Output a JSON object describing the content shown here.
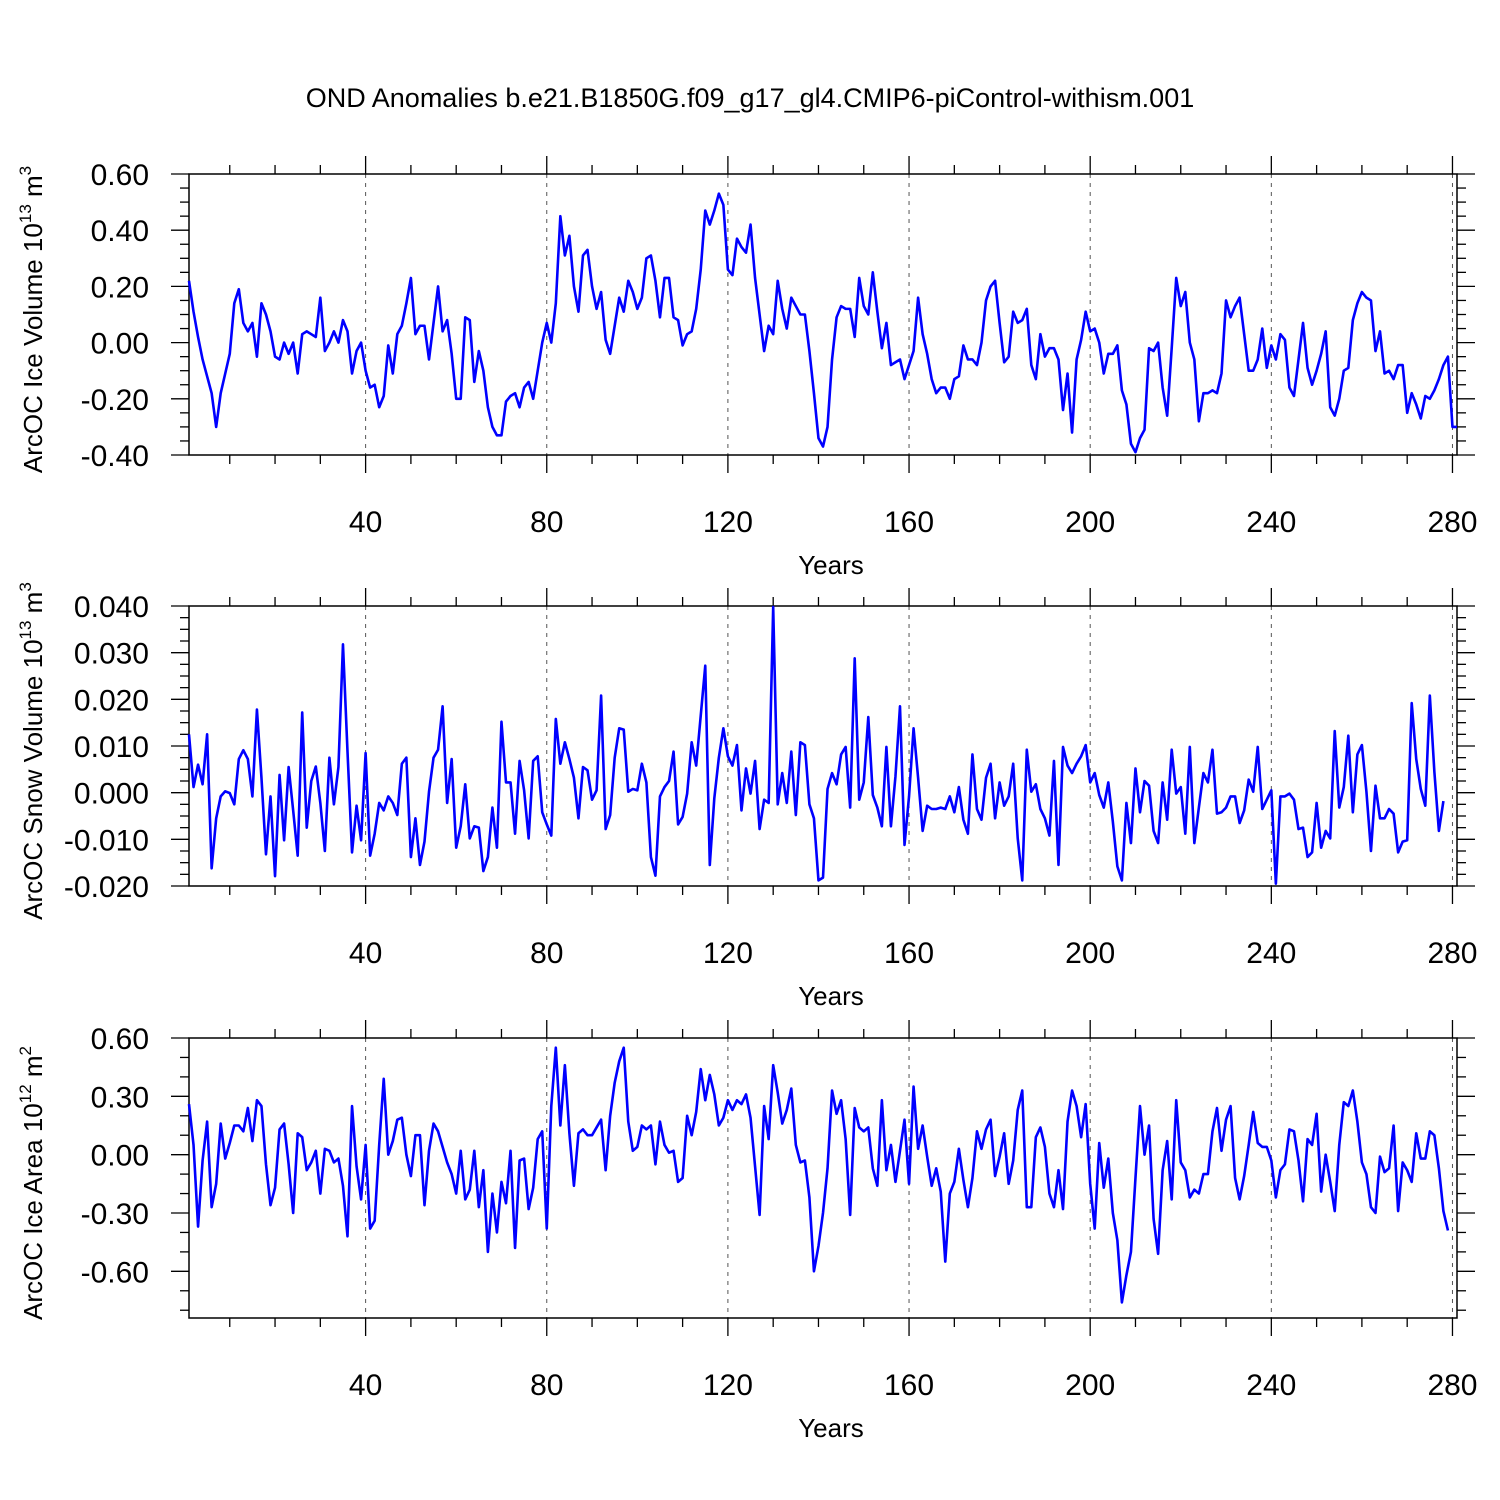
{
  "title": "OND Anomalies b.e21.B1850G.f09_g17_gl4.CMIP6-piControl-withism.001",
  "line_color": "#0000ff",
  "chart_data": [
    {
      "type": "line",
      "title": "OND Anomalies b.e21.B1850G.f09_g17_gl4.CMIP6-piControl-withism.001",
      "ylabel": {
        "text": "ArcOC Ice Volume 10",
        "exp": "13",
        "unit": " m",
        "unit_exp": "3"
      },
      "xlabel": "Years",
      "xlim": [
        1,
        281
      ],
      "ylim": [
        -0.4,
        0.6
      ],
      "x_ticks": [
        40,
        80,
        120,
        160,
        200,
        240,
        280
      ],
      "x_tick_labels": [
        "40",
        "80",
        "120",
        "160",
        "200",
        "240",
        "280"
      ],
      "y_ticks": [
        -0.4,
        -0.2,
        0.0,
        0.2,
        0.4,
        0.6
      ],
      "y_tick_labels": [
        "-0.40",
        "-0.20",
        "0.00",
        "0.20",
        "0.40",
        "0.60"
      ],
      "grid": "vertical dashed at major x ticks",
      "series": [
        {
          "x_start": 1,
          "values": [
            0.22,
            0.11,
            0.02,
            -0.06,
            -0.12,
            -0.18,
            -0.3,
            -0.18,
            -0.11,
            -0.04,
            0.14,
            0.19,
            0.07,
            0.04,
            0.07,
            -0.05,
            0.14,
            0.1,
            0.04,
            -0.05,
            -0.06,
            0.0,
            -0.04,
            0.0,
            -0.11,
            0.03,
            0.04,
            0.03,
            0.02,
            0.16,
            -0.03,
            0.0,
            0.04,
            0.0,
            0.08,
            0.04,
            -0.11,
            -0.03,
            0.0,
            -0.1,
            -0.16,
            -0.15,
            -0.23,
            -0.19,
            -0.01,
            -0.11,
            0.03,
            0.06,
            0.14,
            0.23,
            0.03,
            0.06,
            0.06,
            -0.06,
            0.07,
            0.2,
            0.04,
            0.08,
            -0.04,
            -0.2,
            -0.2,
            0.09,
            0.08,
            -0.14,
            -0.03,
            -0.1,
            -0.23,
            -0.3,
            -0.33,
            -0.33,
            -0.21,
            -0.19,
            -0.18,
            -0.23,
            -0.16,
            -0.14,
            -0.2,
            -0.1,
            0.0,
            0.07,
            0.0,
            0.14,
            0.45,
            0.31,
            0.38,
            0.2,
            0.11,
            0.31,
            0.33,
            0.2,
            0.12,
            0.18,
            0.01,
            -0.04,
            0.06,
            0.16,
            0.11,
            0.22,
            0.18,
            0.12,
            0.16,
            0.3,
            0.31,
            0.22,
            0.09,
            0.23,
            0.23,
            0.09,
            0.08,
            -0.01,
            0.03,
            0.04,
            0.12,
            0.26,
            0.47,
            0.42,
            0.47,
            0.53,
            0.49,
            0.26,
            0.24,
            0.37,
            0.34,
            0.32,
            0.42,
            0.23,
            0.1,
            -0.03,
            0.06,
            0.03,
            0.22,
            0.12,
            0.05,
            0.16,
            0.13,
            0.1,
            0.1,
            -0.03,
            -0.18,
            -0.34,
            -0.37,
            -0.3,
            -0.06,
            0.09,
            0.13,
            0.12,
            0.12,
            0.02,
            0.23,
            0.13,
            0.1,
            0.25,
            0.11,
            -0.02,
            0.07,
            -0.08,
            -0.07,
            -0.06,
            -0.13,
            -0.08,
            -0.03,
            0.16,
            0.03,
            -0.04,
            -0.13,
            -0.18,
            -0.16,
            -0.16,
            -0.2,
            -0.13,
            -0.12,
            -0.01,
            -0.06,
            -0.06,
            -0.08,
            0.0,
            0.15,
            0.2,
            0.22,
            0.07,
            -0.07,
            -0.05,
            0.11,
            0.07,
            0.08,
            0.12,
            -0.08,
            -0.13,
            0.03,
            -0.05,
            -0.02,
            -0.02,
            -0.06,
            -0.24,
            -0.11,
            -0.32,
            -0.06,
            0.01,
            0.11,
            0.04,
            0.05,
            0.0,
            -0.11,
            -0.04,
            -0.04,
            -0.01,
            -0.17,
            -0.22,
            -0.36,
            -0.39,
            -0.34,
            -0.31,
            -0.02,
            -0.03,
            0.0,
            -0.16,
            -0.26,
            -0.02,
            0.23,
            0.13,
            0.18,
            0.0,
            -0.06,
            -0.28,
            -0.18,
            -0.18,
            -0.17,
            -0.18,
            -0.11,
            0.15,
            0.09,
            0.13,
            0.16,
            0.03,
            -0.1,
            -0.1,
            -0.06,
            0.05,
            -0.09,
            -0.01,
            -0.06,
            0.03,
            0.01,
            -0.16,
            -0.19,
            -0.06,
            0.07,
            -0.09,
            -0.15,
            -0.1,
            -0.04,
            0.04,
            -0.23,
            -0.26,
            -0.2,
            -0.1,
            -0.09,
            0.08,
            0.14,
            0.18,
            0.16,
            0.15,
            -0.03,
            0.04,
            -0.11,
            -0.1,
            -0.13,
            -0.08,
            -0.08,
            -0.25,
            -0.18,
            -0.22,
            -0.27,
            -0.19,
            -0.2,
            -0.17,
            -0.13,
            -0.08,
            -0.05,
            -0.3,
            -0.3
          ]
        }
      ]
    },
    {
      "type": "line",
      "ylabel": {
        "text": "ArcOC Snow Volume 10",
        "exp": "13",
        "unit": " m",
        "unit_exp": "3"
      },
      "xlabel": "Years",
      "xlim": [
        1,
        281
      ],
      "ylim": [
        -0.02,
        0.04
      ],
      "x_ticks": [
        40,
        80,
        120,
        160,
        200,
        240,
        280
      ],
      "x_tick_labels": [
        "40",
        "80",
        "120",
        "160",
        "200",
        "240",
        "280"
      ],
      "y_ticks": [
        -0.02,
        -0.01,
        0.0,
        0.01,
        0.02,
        0.03,
        0.04
      ],
      "y_tick_labels": [
        "-0.020",
        "-0.010",
        "0.000",
        "0.010",
        "0.020",
        "0.030",
        "0.040"
      ],
      "grid": "vertical dashed at major x ticks",
      "series": [
        {
          "x_start": 1,
          "values": [
            0.0125,
            0.0012,
            0.006,
            0.0018,
            0.0125,
            -0.0162,
            -0.0055,
            -0.0008,
            0.0003,
            -0.0001,
            -0.0025,
            0.0072,
            0.0091,
            0.0072,
            -0.0008,
            0.0178,
            0.0032,
            -0.0132,
            -0.0008,
            -0.0179,
            0.0038,
            -0.0102,
            0.0055,
            -0.0038,
            -0.0135,
            0.0172,
            -0.0075,
            0.0025,
            0.0056,
            -0.0022,
            -0.0125,
            0.0075,
            -0.0025,
            0.0055,
            0.0318,
            0.0088,
            -0.0128,
            -0.0028,
            -0.0102,
            0.0085,
            -0.0135,
            -0.0088,
            -0.0022,
            -0.0038,
            -0.0008,
            -0.0022,
            -0.0048,
            0.0062,
            0.0075,
            -0.0138,
            -0.0055,
            -0.0155,
            -0.0105,
            0.0002,
            0.0075,
            0.0092,
            0.0185,
            -0.0022,
            0.0072,
            -0.0118,
            -0.0072,
            0.0018,
            -0.0098,
            -0.0072,
            -0.0075,
            -0.0168,
            -0.0138,
            -0.0032,
            -0.0118,
            0.0152,
            0.0022,
            0.0022,
            -0.0088,
            0.0068,
            0.0005,
            -0.0098,
            0.0068,
            0.0078,
            -0.0042,
            -0.0068,
            -0.0092,
            0.0158,
            0.0062,
            0.0108,
            0.0072,
            0.0032,
            -0.0055,
            0.0055,
            0.0048,
            -0.0015,
            0.0005,
            0.0208,
            -0.0078,
            -0.0048,
            0.0075,
            0.0138,
            0.0135,
            0.0002,
            0.0008,
            0.0005,
            0.0062,
            0.0022,
            -0.0138,
            -0.0178,
            -0.0008,
            0.0012,
            0.0025,
            0.0088,
            -0.0068,
            -0.0052,
            -0.0002,
            0.0108,
            0.0058,
            0.0165,
            0.0272,
            -0.0155,
            -0.0012,
            0.0075,
            0.0138,
            0.0078,
            0.0058,
            0.0102,
            -0.0038,
            0.0052,
            -0.0002,
            0.0068,
            -0.0078,
            -0.0015,
            -0.0022,
            0.0398,
            -0.0025,
            0.0042,
            -0.0022,
            0.0088,
            -0.0048,
            0.0108,
            0.0102,
            -0.0025,
            -0.0055,
            -0.0188,
            -0.0182,
            0.0008,
            0.0042,
            0.0018,
            0.0082,
            0.0098,
            -0.0032,
            0.0288,
            -0.0015,
            0.0022,
            0.0162,
            -0.0005,
            -0.0032,
            -0.0072,
            0.0098,
            -0.0072,
            0.0035,
            0.0185,
            -0.0112,
            -0.0008,
            0.0138,
            0.0032,
            -0.0082,
            -0.0028,
            -0.0035,
            -0.0035,
            -0.0032,
            -0.0035,
            -0.0008,
            -0.0042,
            0.0012,
            -0.0058,
            -0.0088,
            0.0082,
            -0.0035,
            -0.0058,
            0.0032,
            0.0062,
            -0.0055,
            0.0022,
            -0.0028,
            -0.0008,
            0.0062,
            -0.0098,
            -0.0188,
            0.0092,
            0.0002,
            0.0018,
            -0.0035,
            -0.0055,
            -0.0092,
            0.0068,
            -0.0155,
            0.0098,
            0.0058,
            0.0042,
            0.0062,
            0.0078,
            0.0102,
            0.0022,
            0.0042,
            -0.0005,
            -0.0032,
            0.0022,
            -0.0062,
            -0.0158,
            -0.0188,
            -0.0022,
            -0.0108,
            0.0052,
            -0.0042,
            0.0025,
            0.0015,
            -0.0082,
            -0.0108,
            0.0022,
            -0.0058,
            0.0092,
            -0.0002,
            0.0012,
            -0.0088,
            0.0098,
            -0.0108,
            -0.0032,
            0.0042,
            0.0022,
            0.0092,
            -0.0045,
            -0.0042,
            -0.0032,
            -0.0008,
            -0.0008,
            -0.0065,
            -0.0038,
            0.0028,
            0.0002,
            0.0098,
            -0.0035,
            -0.0015,
            0.0005,
            -0.0195,
            -0.0008,
            -0.0008,
            -0.0002,
            -0.0015,
            -0.0078,
            -0.0075,
            -0.0138,
            -0.0128,
            -0.0022,
            -0.0118,
            -0.0082,
            -0.0098,
            0.0132,
            -0.0032,
            0.0012,
            0.0122,
            -0.0042,
            0.0082,
            0.0102,
            0.0002,
            -0.0125,
            0.0015,
            -0.0055,
            -0.0055,
            -0.0035,
            -0.0045,
            -0.0128,
            -0.0105,
            -0.0102,
            0.0192,
            0.0072,
            0.0008,
            -0.0028,
            0.0208,
            0.0045,
            -0.0082,
            -0.0018
          ]
        }
      ]
    },
    {
      "type": "line",
      "ylabel": {
        "text": "ArcOC Ice Area 10",
        "exp": "12",
        "unit": " m",
        "unit_exp": "2"
      },
      "xlabel": "Years",
      "xlim": [
        1,
        281
      ],
      "ylim": [
        -0.84,
        0.6
      ],
      "x_ticks": [
        40,
        80,
        120,
        160,
        200,
        240,
        280
      ],
      "x_tick_labels": [
        "40",
        "80",
        "120",
        "160",
        "200",
        "240",
        "280"
      ],
      "y_ticks": [
        -0.6,
        -0.3,
        0.0,
        0.3,
        0.6
      ],
      "y_tick_labels": [
        "-0.60",
        "-0.30",
        "0.00",
        "0.30",
        "0.60"
      ],
      "grid": "vertical dashed at major x ticks",
      "series": [
        {
          "x_start": 1,
          "values": [
            0.26,
            0.05,
            -0.37,
            -0.03,
            0.17,
            -0.27,
            -0.15,
            0.16,
            -0.02,
            0.06,
            0.15,
            0.15,
            0.12,
            0.24,
            0.07,
            0.28,
            0.25,
            -0.05,
            -0.26,
            -0.17,
            0.13,
            0.16,
            -0.05,
            -0.3,
            0.11,
            0.09,
            -0.08,
            -0.04,
            0.02,
            -0.2,
            0.03,
            0.02,
            -0.04,
            -0.02,
            -0.16,
            -0.42,
            0.25,
            -0.06,
            -0.23,
            0.05,
            -0.38,
            -0.34,
            0.05,
            0.39,
            0.0,
            0.07,
            0.18,
            0.19,
            0.0,
            -0.11,
            0.1,
            0.1,
            -0.26,
            0.02,
            0.16,
            0.12,
            0.04,
            -0.04,
            -0.1,
            -0.2,
            0.02,
            -0.23,
            -0.18,
            0.02,
            -0.27,
            -0.08,
            -0.5,
            -0.2,
            -0.4,
            -0.14,
            -0.25,
            0.02,
            -0.48,
            -0.03,
            -0.02,
            -0.28,
            -0.17,
            0.08,
            0.12,
            -0.38,
            0.25,
            0.55,
            0.15,
            0.46,
            0.11,
            -0.16,
            0.11,
            0.13,
            0.1,
            0.1,
            0.14,
            0.18,
            -0.08,
            0.2,
            0.37,
            0.48,
            0.55,
            0.17,
            0.02,
            0.04,
            0.15,
            0.13,
            0.15,
            -0.05,
            0.17,
            0.05,
            0.01,
            0.02,
            -0.14,
            -0.12,
            0.2,
            0.1,
            0.22,
            0.44,
            0.28,
            0.41,
            0.31,
            0.15,
            0.19,
            0.28,
            0.23,
            0.28,
            0.26,
            0.31,
            0.19,
            -0.06,
            -0.31,
            0.25,
            0.08,
            0.46,
            0.32,
            0.16,
            0.23,
            0.34,
            0.05,
            -0.04,
            -0.03,
            -0.22,
            -0.6,
            -0.47,
            -0.3,
            -0.07,
            0.33,
            0.21,
            0.28,
            0.08,
            -0.31,
            0.24,
            0.14,
            0.12,
            0.14,
            -0.07,
            -0.16,
            0.28,
            -0.08,
            0.05,
            -0.14,
            0.02,
            0.18,
            -0.15,
            0.35,
            0.03,
            0.15,
            -0.01,
            -0.16,
            -0.07,
            -0.19,
            -0.55,
            -0.2,
            -0.14,
            0.03,
            -0.13,
            -0.27,
            -0.12,
            0.12,
            0.03,
            0.13,
            0.18,
            -0.11,
            -0.01,
            0.11,
            -0.15,
            -0.03,
            0.23,
            0.33,
            -0.27,
            -0.27,
            0.09,
            0.14,
            0.04,
            -0.2,
            -0.27,
            -0.08,
            -0.28,
            0.17,
            0.33,
            0.25,
            0.09,
            0.26,
            -0.15,
            -0.38,
            0.06,
            -0.17,
            -0.02,
            -0.3,
            -0.44,
            -0.76,
            -0.62,
            -0.5,
            -0.12,
            0.25,
            0.0,
            0.15,
            -0.33,
            -0.51,
            -0.08,
            0.07,
            -0.23,
            0.28,
            -0.04,
            -0.08,
            -0.22,
            -0.18,
            -0.2,
            -0.1,
            -0.1,
            0.12,
            0.24,
            0.02,
            0.18,
            0.25,
            -0.12,
            -0.23,
            -0.11,
            0.05,
            0.22,
            0.06,
            0.04,
            0.04,
            -0.03,
            -0.22,
            -0.08,
            -0.05,
            0.13,
            0.12,
            -0.03,
            -0.24,
            0.08,
            0.05,
            0.21,
            -0.19,
            0.0,
            -0.14,
            -0.29,
            0.05,
            0.27,
            0.25,
            0.33,
            0.17,
            -0.04,
            -0.1,
            -0.27,
            -0.3,
            -0.01,
            -0.09,
            -0.07,
            0.15,
            -0.29,
            -0.04,
            -0.08,
            -0.14,
            0.11,
            -0.02,
            -0.02,
            0.12,
            0.1,
            -0.07,
            -0.29,
            -0.39
          ]
        }
      ]
    }
  ]
}
